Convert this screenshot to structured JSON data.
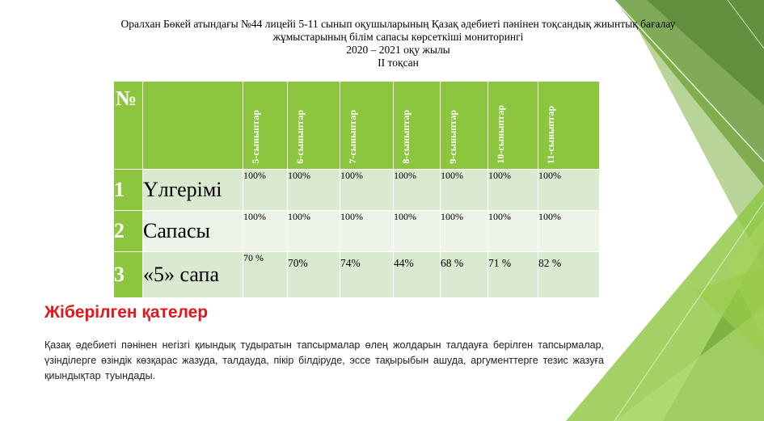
{
  "title": {
    "line1": "Оралхан  Бөкей атындағы №44 лицейі  5-11 сынып оқушыларының  Қазақ әдебиеті пәнінен тоқсандық жиынтық бағалау",
    "line2": "жұмыстарының білім  сапасы көрсеткіші  мониторингі",
    "line3": "2020 – 2021 оқу  жылы",
    "line4": "II тоқсан"
  },
  "table": {
    "num_header": "№",
    "columns": [
      "5-сыныптар",
      "6-сыныптар",
      "7-сыныптар",
      "8-сыныптар",
      "9-сыныптар",
      "10-сыныптар",
      "11-сыныптар"
    ],
    "rows": [
      {
        "num": "1",
        "label": "Үлгерімі",
        "values": [
          "100%",
          "100%",
          "100%",
          "100%",
          "100%",
          "100%",
          "100%"
        ]
      },
      {
        "num": "2",
        "label": "Сапасы",
        "values": [
          "100%",
          "100%",
          "100%",
          "100%",
          "100%",
          "100%",
          "100%"
        ]
      },
      {
        "num": "3",
        "label": "«5» сапа",
        "values": [
          "70 %",
          "70%",
          "74%",
          "44%",
          "68 %",
          "71 %",
          "82 %"
        ]
      }
    ]
  },
  "section_title": "Жіберілген қателер",
  "paragraph": "Қазақ әдебиеті пәнінен негізгі қиындық тудыратын тапсырмалар өлең жолдарын талдауға берілген тапсырмалар, үзінділерге өзіндік көзқарас жазуда, талдауда, пікір білдіруде, эссе тақырыбын ашуда, аргументтерге тезис жазуға қиындықтар туындады.",
  "colors": {
    "header_green": "#8cc63f",
    "row_light": "#d9ead0",
    "row_lighter": "#ecf4e7",
    "section_red": "#e6151b"
  }
}
